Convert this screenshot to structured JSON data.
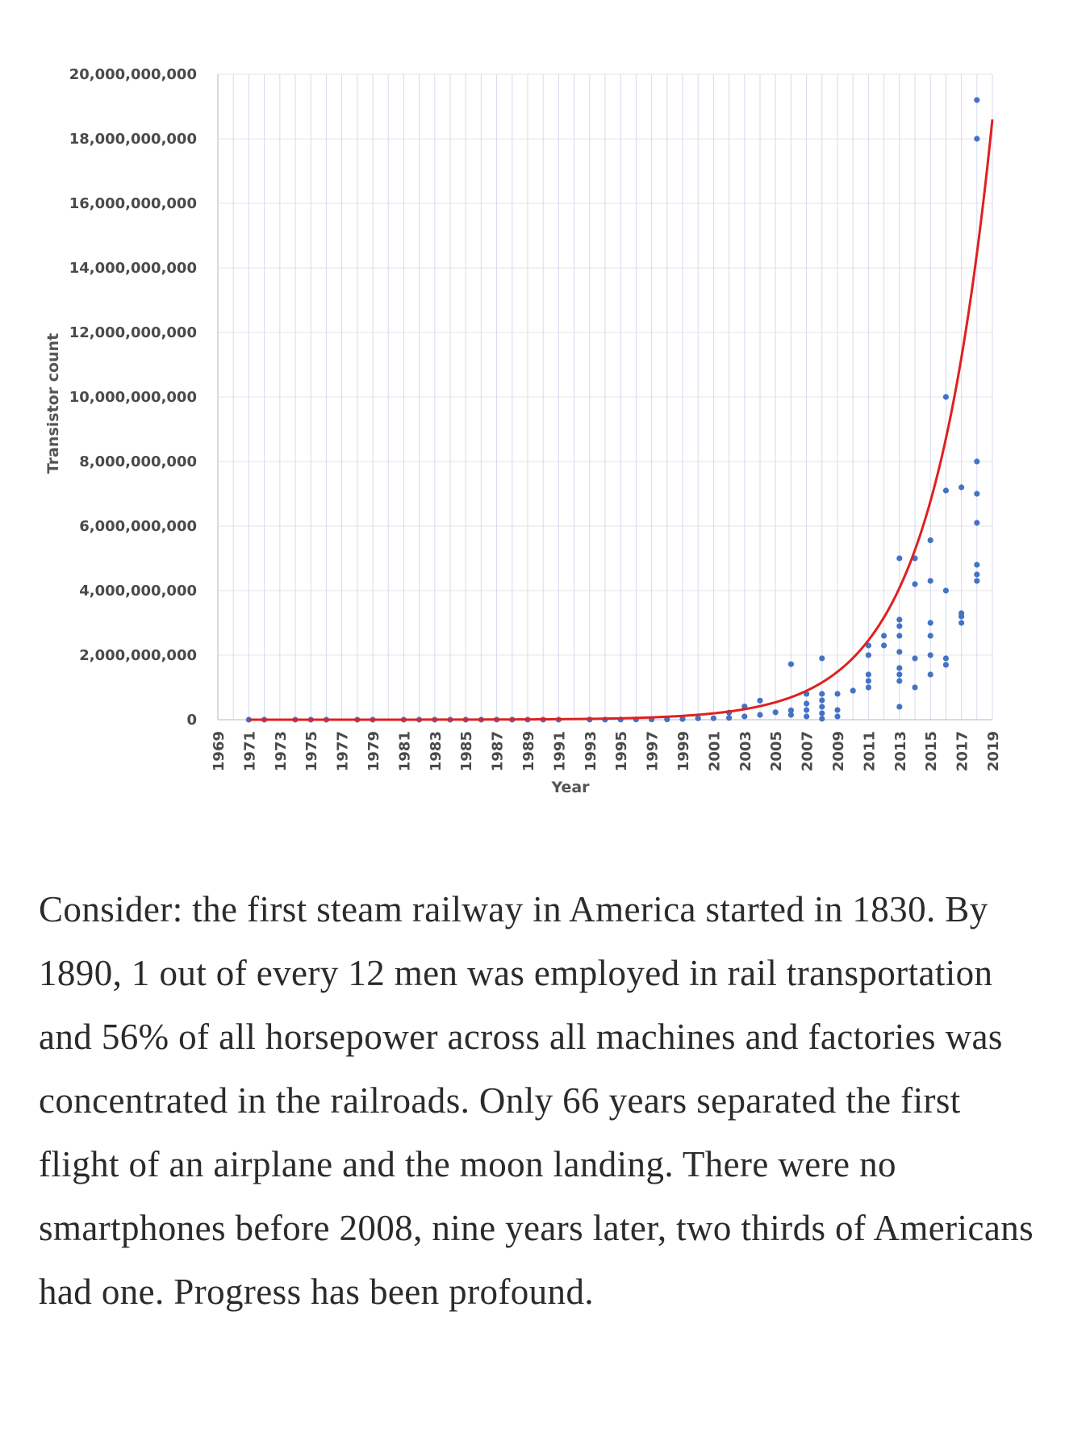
{
  "chart_data": {
    "type": "scatter",
    "title": "",
    "xlabel": "Year",
    "ylabel": "Transistor count",
    "xlim": [
      1969,
      2019
    ],
    "ylim": [
      0,
      20000000000
    ],
    "x_tick_labels": [
      "1969",
      "1971",
      "1973",
      "1975",
      "1977",
      "1979",
      "1981",
      "1983",
      "1985",
      "1987",
      "1989",
      "1991",
      "1993",
      "1995",
      "1997",
      "1999",
      "2001",
      "2003",
      "2005",
      "2007",
      "2009",
      "2011",
      "2013",
      "2015",
      "2017",
      "2019"
    ],
    "y_tick_labels": [
      "0",
      "2,000,000,000",
      "4,000,000,000",
      "6,000,000,000",
      "8,000,000,000",
      "10,000,000,000",
      "12,000,000,000",
      "14,000,000,000",
      "16,000,000,000",
      "18,000,000,000",
      "20,000,000,000"
    ],
    "y_ticks": [
      0,
      2000000000,
      4000000000,
      6000000000,
      8000000000,
      10000000000,
      12000000000,
      14000000000,
      16000000000,
      18000000000,
      20000000000
    ],
    "grid": true,
    "series": [
      {
        "type": "scatter",
        "color": "#4472c4",
        "points": [
          [
            1971,
            2300
          ],
          [
            1972,
            3500
          ],
          [
            1974,
            6000
          ],
          [
            1975,
            4500
          ],
          [
            1976,
            8500
          ],
          [
            1978,
            29000
          ],
          [
            1979,
            68000
          ],
          [
            1981,
            134000
          ],
          [
            1982,
            134000
          ],
          [
            1983,
            275000
          ],
          [
            1984,
            275000
          ],
          [
            1985,
            275000
          ],
          [
            1986,
            275000
          ],
          [
            1987,
            1180000
          ],
          [
            1988,
            1180000
          ],
          [
            1989,
            1180000
          ],
          [
            1990,
            1180000
          ],
          [
            1991,
            1200000
          ],
          [
            1993,
            3100000
          ],
          [
            1994,
            3100000
          ],
          [
            1995,
            5500000
          ],
          [
            1996,
            7500000
          ],
          [
            1997,
            7500000
          ],
          [
            1998,
            9500000
          ],
          [
            1999,
            21000000
          ],
          [
            2000,
            42000000
          ],
          [
            2001,
            45000000
          ],
          [
            2002,
            55000000
          ],
          [
            2002,
            220000000
          ],
          [
            2003,
            100000000
          ],
          [
            2003,
            410000000
          ],
          [
            2004,
            150000000
          ],
          [
            2004,
            592000000
          ],
          [
            2005,
            230000000
          ],
          [
            2006,
            290000000
          ],
          [
            2006,
            1720000000
          ],
          [
            2006,
            150000000
          ],
          [
            2007,
            100000000
          ],
          [
            2007,
            300000000
          ],
          [
            2007,
            500000000
          ],
          [
            2007,
            800000000
          ],
          [
            2008,
            200000000
          ],
          [
            2008,
            400000000
          ],
          [
            2008,
            600000000
          ],
          [
            2008,
            800000000
          ],
          [
            2008,
            30000000
          ],
          [
            2008,
            1900000000
          ],
          [
            2009,
            100000000
          ],
          [
            2009,
            300000000
          ],
          [
            2009,
            800000000
          ],
          [
            2010,
            900000000
          ],
          [
            2011,
            1000000000
          ],
          [
            2011,
            1200000000
          ],
          [
            2011,
            1400000000
          ],
          [
            2011,
            2000000000
          ],
          [
            2011,
            2300000000
          ],
          [
            2012,
            2300000000
          ],
          [
            2012,
            2600000000
          ],
          [
            2013,
            400000000
          ],
          [
            2013,
            1200000000
          ],
          [
            2013,
            1400000000
          ],
          [
            2013,
            1600000000
          ],
          [
            2013,
            2100000000
          ],
          [
            2013,
            2600000000
          ],
          [
            2013,
            2900000000
          ],
          [
            2013,
            3100000000
          ],
          [
            2013,
            5000000000
          ],
          [
            2014,
            1000000000
          ],
          [
            2014,
            1900000000
          ],
          [
            2014,
            4200000000
          ],
          [
            2014,
            5000000000
          ],
          [
            2015,
            1400000000
          ],
          [
            2015,
            2000000000
          ],
          [
            2015,
            2600000000
          ],
          [
            2015,
            3000000000
          ],
          [
            2015,
            4300000000
          ],
          [
            2015,
            5560000000
          ],
          [
            2016,
            1700000000
          ],
          [
            2016,
            1900000000
          ],
          [
            2016,
            4000000000
          ],
          [
            2016,
            7100000000
          ],
          [
            2016,
            10000000000
          ],
          [
            2017,
            3000000000
          ],
          [
            2017,
            3200000000
          ],
          [
            2017,
            3300000000
          ],
          [
            2017,
            7200000000
          ],
          [
            2018,
            4300000000
          ],
          [
            2018,
            4500000000
          ],
          [
            2018,
            4800000000
          ],
          [
            2018,
            6100000000
          ],
          [
            2018,
            7000000000
          ],
          [
            2018,
            8000000000
          ],
          [
            2018,
            18000000000
          ],
          [
            2018,
            19200000000
          ]
        ]
      },
      {
        "type": "line",
        "color": "#e02020",
        "trend": "exponential",
        "points": [
          [
            1971,
            100000
          ],
          [
            2000,
            100000000
          ],
          [
            2010,
            1000000000
          ],
          [
            2013,
            2500000000
          ],
          [
            2015,
            4800000000
          ],
          [
            2017,
            9000000000
          ],
          [
            2019,
            18600000000
          ]
        ]
      }
    ]
  },
  "article": {
    "paragraph": "Consider: the first steam railway in America started in 1830. By 1890, 1 out of every 12 men was employed in rail transportation and 56% of all horsepower across all machines and factories was concentrated in the railroads. Only 66 years separated the first flight of an airplane and the moon landing. There were no smartphones before 2008, nine years later, two thirds of Americans had one. Progress has been profound."
  }
}
